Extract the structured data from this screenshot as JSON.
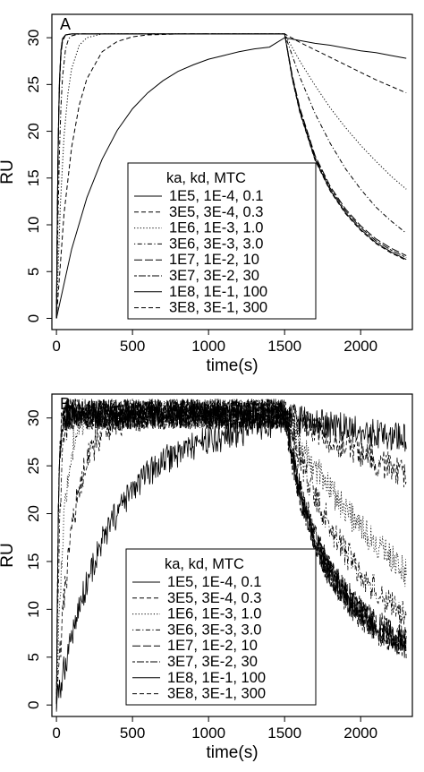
{
  "chart_data": [
    {
      "type": "line",
      "panel_label": "A",
      "xlabel": "time(s)",
      "ylabel": "RU",
      "xlim": [
        -30,
        2340
      ],
      "ylim": [
        -1.2,
        32.5
      ],
      "xticks": [
        0,
        500,
        1000,
        1500,
        2000
      ],
      "yticks": [
        0,
        5,
        10,
        15,
        20,
        25,
        30
      ],
      "grid": false,
      "noisy": false,
      "legend": {
        "position": "bottom-center",
        "title": "ka,   kd,   MTC",
        "entries": [
          "1E5, 1E-4, 0.1",
          "3E5, 3E-4, 0.3",
          "1E6, 1E-3, 1.0",
          "3E6, 3E-3, 3.0",
          "1E7, 1E-2, 10",
          "3E7, 3E-2, 30",
          "1E8, 1E-1, 100",
          "3E8, 3E-1, 300"
        ]
      },
      "series": [
        {
          "name": "1E5, 1E-4, 0.1",
          "dash": "solid",
          "x": [
            0,
            100,
            200,
            300,
            400,
            500,
            600,
            700,
            800,
            900,
            1000,
            1100,
            1200,
            1300,
            1400,
            1500,
            1600,
            1700,
            1800,
            1900,
            2000,
            2100,
            2200,
            2300
          ],
          "y": [
            0,
            7.4,
            12.9,
            17.0,
            20.1,
            22.4,
            24.1,
            25.4,
            26.4,
            27.1,
            27.7,
            28.1,
            28.5,
            28.8,
            29.0,
            30.0,
            29.7,
            29.4,
            29.2,
            28.9,
            28.6,
            28.4,
            28.1,
            27.8
          ]
        },
        {
          "name": "3E5, 3E-4, 0.3",
          "dash": "dashed",
          "x": [
            0,
            50,
            100,
            150,
            200,
            300,
            400,
            500,
            600,
            800,
            1000,
            1500,
            1600,
            1700,
            1800,
            1900,
            2000,
            2100,
            2200,
            2300
          ],
          "y": [
            0,
            11.2,
            18.3,
            22.8,
            25.6,
            28.5,
            29.6,
            30.1,
            30.3,
            30.4,
            30.4,
            30.4,
            29.5,
            28.7,
            27.9,
            27.1,
            26.3,
            25.5,
            24.8,
            24.1
          ]
        },
        {
          "name": "1E6, 1E-3, 1.0",
          "dash": "dotted",
          "x": [
            0,
            25,
            50,
            75,
            100,
            150,
            200,
            300,
            400,
            1500,
            1600,
            1700,
            1800,
            1900,
            2000,
            2100,
            2200,
            2300
          ],
          "y": [
            0,
            12.0,
            19.5,
            24.0,
            26.7,
            29.2,
            30.0,
            30.4,
            30.4,
            30.4,
            27.5,
            24.9,
            22.5,
            20.4,
            18.5,
            16.8,
            15.2,
            13.8
          ]
        },
        {
          "name": "3E6, 3E-3, 3.0",
          "dash": "dashdot",
          "x": [
            0,
            10,
            20,
            30,
            40,
            60,
            80,
            100,
            150,
            1500,
            1600,
            1700,
            1800,
            1900,
            2000,
            2100,
            2200,
            2300
          ],
          "y": [
            0,
            10.5,
            18.0,
            22.8,
            25.8,
            28.8,
            29.9,
            30.2,
            30.4,
            30.4,
            25.8,
            21.9,
            18.7,
            16.0,
            13.8,
            11.9,
            10.4,
            9.1
          ]
        },
        {
          "name": "1E7, 1E-2, 10",
          "dash": "longdash",
          "x": [
            0,
            5,
            10,
            15,
            20,
            30,
            40,
            60,
            100,
            1500,
            1550,
            1600,
            1700,
            1800,
            1900,
            2000,
            2100,
            2200,
            2300
          ],
          "y": [
            0,
            9.5,
            16.5,
            21.5,
            24.8,
            28.2,
            29.6,
            30.3,
            30.4,
            30.4,
            26.0,
            22.5,
            17.4,
            14.1,
            11.7,
            9.9,
            8.5,
            7.5,
            6.7
          ]
        },
        {
          "name": "3E7, 3E-2, 30",
          "dash": "twodash",
          "x": [
            0,
            5,
            10,
            15,
            20,
            30,
            40,
            60,
            100,
            1500,
            1550,
            1600,
            1700,
            1800,
            1900,
            2000,
            2100,
            2200,
            2300
          ],
          "y": [
            0,
            9.8,
            17.0,
            22.0,
            25.3,
            28.6,
            29.8,
            30.3,
            30.4,
            30.4,
            25.8,
            22.3,
            17.2,
            13.9,
            11.5,
            9.7,
            8.3,
            7.3,
            6.5
          ]
        },
        {
          "name": "1E8, 1E-1, 100",
          "dash": "solid",
          "x": [
            0,
            5,
            10,
            15,
            20,
            30,
            40,
            60,
            100,
            1500,
            1550,
            1600,
            1700,
            1800,
            1900,
            2000,
            2100,
            2200,
            2300
          ],
          "y": [
            0,
            10.0,
            17.2,
            22.2,
            25.5,
            28.7,
            29.9,
            30.3,
            30.4,
            30.4,
            25.7,
            22.1,
            17.0,
            13.7,
            11.3,
            9.5,
            8.1,
            7.1,
            6.3
          ]
        },
        {
          "name": "3E8, 3E-1, 300",
          "dash": "dashed",
          "x": [
            0,
            5,
            10,
            15,
            20,
            30,
            40,
            60,
            100,
            1500,
            1550,
            1600,
            1700,
            1800,
            1900,
            2000,
            2100,
            2200,
            2300
          ],
          "y": [
            0,
            10.0,
            17.2,
            22.2,
            25.5,
            28.7,
            29.9,
            30.3,
            30.4,
            30.4,
            25.6,
            22.0,
            16.9,
            13.6,
            11.2,
            9.4,
            8.0,
            7.0,
            6.2
          ]
        }
      ]
    },
    {
      "type": "line",
      "panel_label": "B",
      "xlabel": "time(s)",
      "ylabel": "RU",
      "xlim": [
        -30,
        2340
      ],
      "ylim": [
        -1.2,
        32.5
      ],
      "xticks": [
        0,
        500,
        1000,
        1500,
        2000
      ],
      "yticks": [
        0,
        5,
        10,
        15,
        20,
        25,
        30
      ],
      "grid": false,
      "noisy": true,
      "legend": {
        "position": "bottom-center",
        "title": "ka,   kd,   MTC",
        "entries": [
          "1E5, 1E-4, 0.1",
          "3E5, 3E-4, 0.3",
          "1E6, 1E-3, 1.0",
          "3E6, 3E-3, 3.0",
          "1E7, 1E-2, 10",
          "3E7, 3E-2, 30",
          "1E8, 1E-1, 100",
          "3E8, 3E-1, 300"
        ]
      },
      "series": [
        {
          "name": "1E5, 1E-4, 0.1",
          "dash": "solid",
          "x": [
            0,
            100,
            200,
            300,
            400,
            500,
            600,
            700,
            800,
            900,
            1000,
            1100,
            1200,
            1300,
            1400,
            1500,
            1600,
            1700,
            1800,
            1900,
            2000,
            2100,
            2200,
            2300
          ],
          "y": [
            0,
            7.4,
            12.9,
            17.0,
            20.1,
            22.4,
            24.1,
            25.4,
            26.4,
            27.1,
            27.7,
            28.1,
            28.5,
            28.8,
            29.0,
            30.0,
            29.7,
            29.4,
            29.2,
            28.9,
            28.6,
            28.4,
            28.1,
            27.8
          ]
        },
        {
          "name": "3E5, 3E-4, 0.3",
          "dash": "dashed",
          "x": [
            0,
            50,
            100,
            150,
            200,
            300,
            400,
            500,
            600,
            800,
            1000,
            1500,
            1600,
            1700,
            1800,
            1900,
            2000,
            2100,
            2200,
            2300
          ],
          "y": [
            0,
            11.2,
            18.3,
            22.8,
            25.6,
            28.5,
            29.6,
            30.1,
            30.3,
            30.4,
            30.4,
            30.4,
            29.5,
            28.7,
            27.9,
            27.1,
            26.3,
            25.5,
            24.8,
            24.1
          ]
        },
        {
          "name": "1E6, 1E-3, 1.0",
          "dash": "dotted",
          "x": [
            0,
            25,
            50,
            75,
            100,
            150,
            200,
            300,
            400,
            1500,
            1600,
            1700,
            1800,
            1900,
            2000,
            2100,
            2200,
            2300
          ],
          "y": [
            0,
            12.0,
            19.5,
            24.0,
            26.7,
            29.2,
            30.0,
            30.4,
            30.4,
            30.4,
            27.5,
            24.9,
            22.5,
            20.4,
            18.5,
            16.8,
            15.2,
            13.8
          ]
        },
        {
          "name": "3E6, 3E-3, 3.0",
          "dash": "dashdot",
          "x": [
            0,
            10,
            20,
            30,
            40,
            60,
            80,
            100,
            150,
            1500,
            1600,
            1700,
            1800,
            1900,
            2000,
            2100,
            2200,
            2300
          ],
          "y": [
            0,
            10.5,
            18.0,
            22.8,
            25.8,
            28.8,
            29.9,
            30.2,
            30.4,
            30.4,
            25.8,
            21.9,
            18.7,
            16.0,
            13.8,
            11.9,
            10.4,
            9.1
          ]
        },
        {
          "name": "1E7, 1E-2, 10",
          "dash": "longdash",
          "x": [
            0,
            5,
            10,
            15,
            20,
            30,
            40,
            60,
            100,
            1500,
            1550,
            1600,
            1700,
            1800,
            1900,
            2000,
            2100,
            2200,
            2300
          ],
          "y": [
            0,
            9.5,
            16.5,
            21.5,
            24.8,
            28.2,
            29.6,
            30.3,
            30.4,
            30.4,
            26.0,
            22.5,
            17.4,
            14.1,
            11.7,
            9.9,
            8.5,
            7.5,
            6.7
          ]
        },
        {
          "name": "3E7, 3E-2, 30",
          "dash": "twodash",
          "x": [
            0,
            5,
            10,
            15,
            20,
            30,
            40,
            60,
            100,
            1500,
            1550,
            1600,
            1700,
            1800,
            1900,
            2000,
            2100,
            2200,
            2300
          ],
          "y": [
            0,
            9.8,
            17.0,
            22.0,
            25.3,
            28.6,
            29.8,
            30.3,
            30.4,
            30.4,
            25.8,
            22.3,
            17.2,
            13.9,
            11.5,
            9.7,
            8.3,
            7.3,
            6.5
          ]
        },
        {
          "name": "1E8, 1E-1, 100",
          "dash": "solid",
          "x": [
            0,
            5,
            10,
            15,
            20,
            30,
            40,
            60,
            100,
            1500,
            1550,
            1600,
            1700,
            1800,
            1900,
            2000,
            2100,
            2200,
            2300
          ],
          "y": [
            0,
            10.0,
            17.2,
            22.2,
            25.5,
            28.7,
            29.9,
            30.3,
            30.4,
            30.4,
            25.7,
            22.1,
            17.0,
            13.7,
            11.3,
            9.5,
            8.1,
            7.1,
            6.3
          ]
        },
        {
          "name": "3E8, 3E-1, 300",
          "dash": "dashed",
          "x": [
            0,
            5,
            10,
            15,
            20,
            30,
            40,
            60,
            100,
            1500,
            1550,
            1600,
            1700,
            1800,
            1900,
            2000,
            2100,
            2200,
            2300
          ],
          "y": [
            0,
            10.0,
            17.2,
            22.2,
            25.5,
            28.7,
            29.9,
            30.3,
            30.4,
            30.4,
            25.6,
            22.0,
            16.9,
            13.6,
            11.2,
            9.4,
            8.0,
            7.0,
            6.2
          ]
        }
      ]
    }
  ]
}
